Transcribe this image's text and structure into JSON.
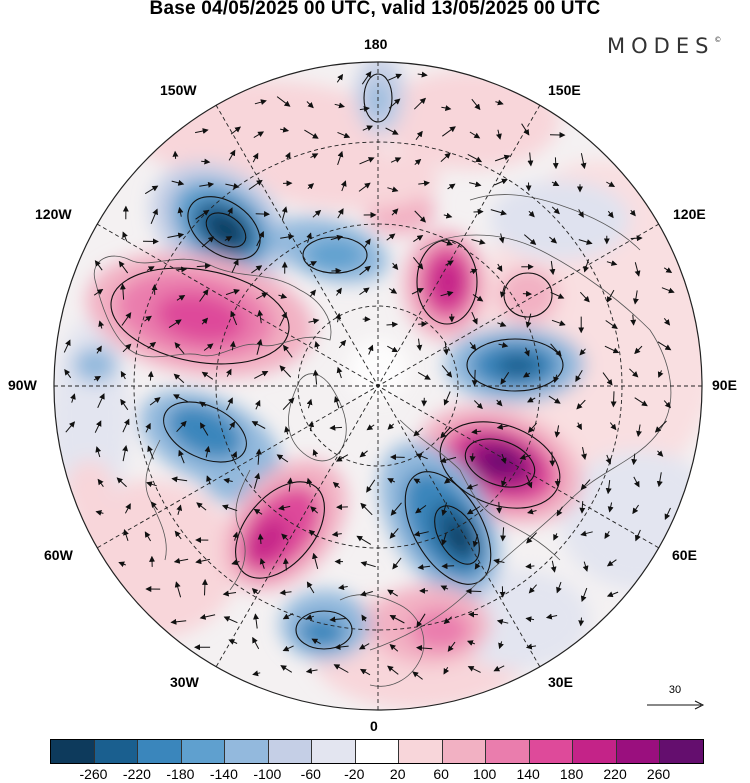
{
  "title": "Base 04/05/2025 00 UTC, valid 13/05/2025 00 UTC",
  "brand": "MODES",
  "brand_mark": "©",
  "longitude_labels": {
    "top": "180",
    "bottom": "0",
    "left": "90W",
    "right": "90E",
    "upper_left": "150W",
    "upper_right": "150E",
    "mid_upper_left": "120W",
    "mid_upper_right": "120E",
    "mid_lower_left": "60W",
    "mid_lower_right": "60E",
    "lower_left": "30W",
    "lower_right": "30E"
  },
  "reference_vector": "30",
  "colorbar": {
    "ticks": [
      "-260",
      "-220",
      "-180",
      "-140",
      "-100",
      "-60",
      "-20",
      "20",
      "60",
      "100",
      "140",
      "180",
      "220",
      "260"
    ],
    "colors": [
      "#0d3a5c",
      "#1a5f8f",
      "#3a86bc",
      "#5fa0cf",
      "#93b9dd",
      "#c5cfe6",
      "#e3e5f0",
      "#ffffff",
      "#f8d6da",
      "#f2b1c3",
      "#ea7dad",
      "#de4a9a",
      "#c42388",
      "#9a0f7e",
      "#640e6e"
    ]
  },
  "map_colors": {
    "ocean_base": "#f7f7f7",
    "land_line": "#555555",
    "grid_line": "#222222",
    "arrow": "#111111"
  }
}
